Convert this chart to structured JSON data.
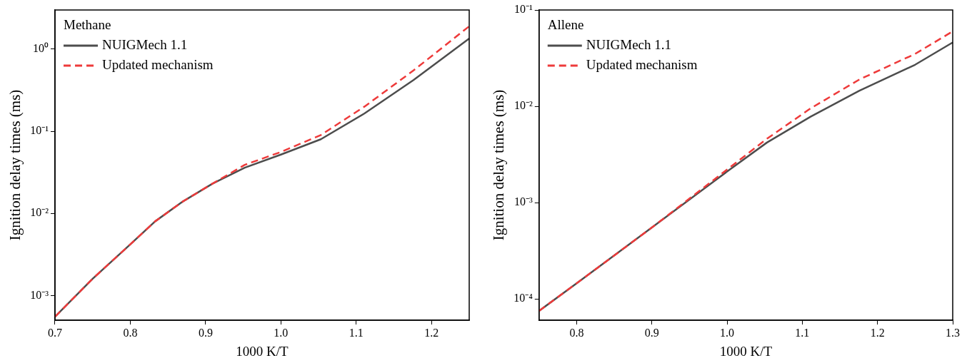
{
  "chart_data": [
    {
      "type": "line",
      "legend_title": "Methane",
      "xlabel": "1000 K/T",
      "ylabel": "Ignition delay times (ms)",
      "log": "y",
      "grid": false,
      "legend": "top left",
      "marker": "none",
      "x": [
        0.7,
        0.75,
        0.8,
        0.833,
        0.87,
        0.909,
        0.952,
        1.0,
        1.053,
        1.111,
        1.176,
        1.25
      ],
      "series": [
        {
          "name": "NUIGMech 1.1",
          "color": "#4d4d4d",
          "line_style": "solid",
          "values": [
            0.00055,
            0.0016,
            0.0042,
            0.008,
            0.014,
            0.023,
            0.036,
            0.052,
            0.08,
            0.165,
            0.42,
            1.35
          ]
        },
        {
          "name": "Updated mechanism",
          "color": "#ee3a3a",
          "line_style": "dashed",
          "values": [
            0.00055,
            0.0016,
            0.0042,
            0.008,
            0.014,
            0.023,
            0.039,
            0.056,
            0.09,
            0.2,
            0.55,
            1.9
          ]
        }
      ],
      "xlim": [
        0.7,
        1.25
      ],
      "xticks": [
        0.7,
        0.8,
        0.9,
        {
          "value": 1,
          "label": "1.0"
        },
        1.1,
        1.2
      ],
      "ylim": [
        0.0005,
        3
      ],
      "yticks": [
        {
          "value": 0.001,
          "label": "10⁻³"
        },
        {
          "value": 0.01,
          "label": "10⁻²"
        },
        {
          "value": 0.1,
          "label": "10⁻¹"
        },
        {
          "value": 1,
          "label": "10⁰"
        }
      ]
    },
    {
      "type": "line",
      "legend_title": "Allene",
      "xlabel": "1000 K/T",
      "ylabel": "Ignition delay times (ms)",
      "log": "y",
      "grid": false,
      "legend": "top left",
      "marker": "none",
      "x": [
        0.75,
        0.8,
        0.9,
        1.0,
        1.053,
        1.111,
        1.176,
        1.25,
        1.3
      ],
      "series": [
        {
          "name": "NUIGMech 1.1",
          "color": "#4d4d4d",
          "line_style": "solid",
          "values": [
            7.5e-05,
            0.000145,
            0.00055,
            0.0021,
            0.0042,
            0.0078,
            0.0145,
            0.027,
            0.046
          ]
        },
        {
          "name": "Updated mechanism",
          "color": "#ee3a3a",
          "line_style": "dashed",
          "values": [
            7.5e-05,
            0.000145,
            0.00055,
            0.0022,
            0.0046,
            0.0095,
            0.019,
            0.035,
            0.06
          ]
        }
      ],
      "xlim": [
        0.75,
        1.3
      ],
      "xticks": [
        0.8,
        0.9,
        {
          "value": 1,
          "label": "1.0"
        },
        1.1,
        1.2,
        1.3
      ],
      "ylim": [
        6e-05,
        0.1
      ],
      "yticks": [
        {
          "value": 0.0001,
          "label": "10⁻⁴"
        },
        {
          "value": 0.001,
          "label": "10⁻³"
        },
        {
          "value": 0.01,
          "label": "10⁻²"
        },
        {
          "value": 0.1,
          "label": "10⁻¹"
        }
      ]
    }
  ]
}
